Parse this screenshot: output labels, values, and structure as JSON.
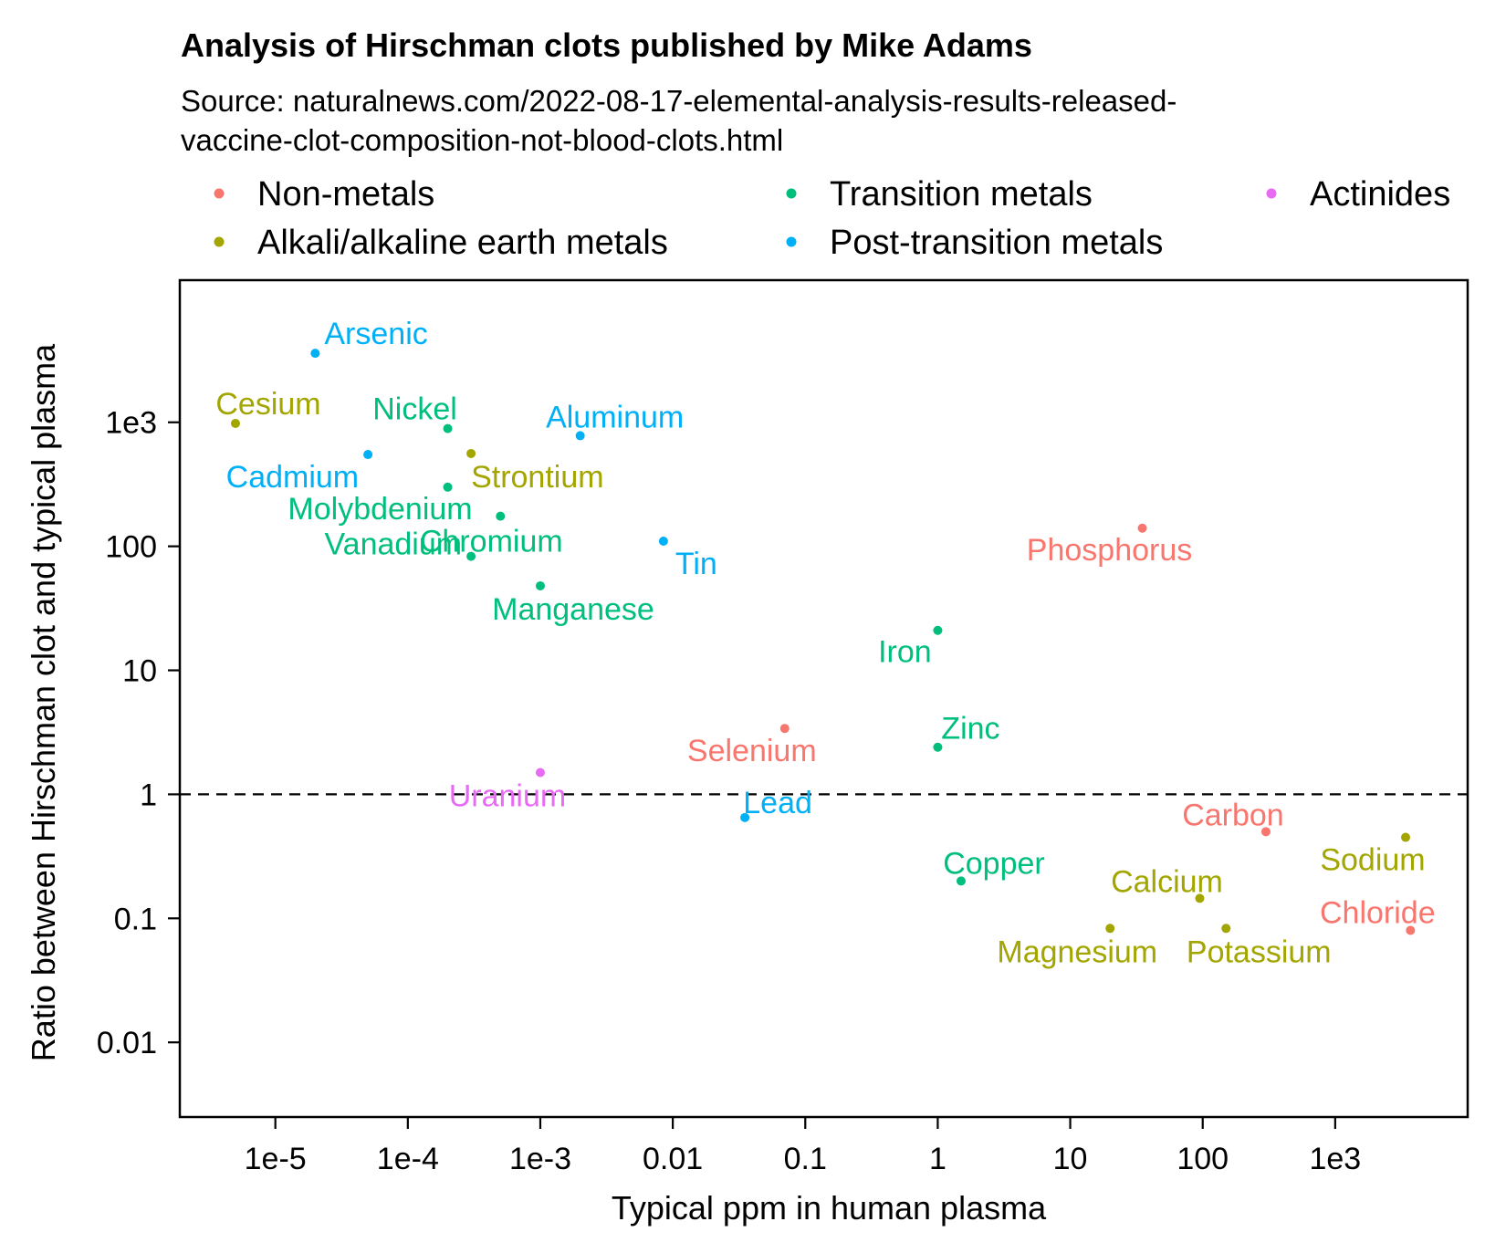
{
  "chart_data": {
    "type": "scatter",
    "title": "Analysis of Hirschman clots published by Mike Adams",
    "subtitle_lines": [
      "Source: naturalnews.com/2022-08-17-elemental-analysis-results-released-",
      "vaccine-clot-composition-not-blood-clots.html"
    ],
    "xlabel": "Typical ppm in human plasma",
    "ylabel": "Ratio between Hirschman clot and typical plasma",
    "x_scale": "log",
    "y_scale": "log",
    "xlim": [
      1.9e-06,
      10000
    ],
    "ylim": [
      0.0025,
      14000
    ],
    "x_ticks": [
      1e-05,
      0.0001,
      0.001,
      0.01,
      0.1,
      1,
      10,
      100,
      1000
    ],
    "x_tick_labels": [
      "1e-5",
      "1e-4",
      "1e-3",
      "0.01",
      "0.1",
      "1",
      "10",
      "100",
      "1e3"
    ],
    "y_ticks": [
      0.01,
      0.1,
      1,
      10,
      100,
      1000
    ],
    "y_tick_labels": [
      "0.01",
      "0.1",
      "1",
      "10",
      "100",
      "1e3"
    ],
    "reference_line": {
      "y": 1,
      "style": "dashed"
    },
    "grid": false,
    "legend_position": "top",
    "groups": [
      {
        "name": "Non-metals",
        "color": "#F8766D"
      },
      {
        "name": "Alkali/alkaline earth metals",
        "color": "#A3A500"
      },
      {
        "name": "Transition metals",
        "color": "#00BF7D"
      },
      {
        "name": "Post-transition metals",
        "color": "#00B0F6"
      },
      {
        "name": "Actinides",
        "color": "#E76BF3"
      }
    ],
    "points": [
      {
        "label": "Arsenic",
        "group": "Post-transition metals",
        "x": 2e-05,
        "y": 3600
      },
      {
        "label": "Cesium",
        "group": "Alkali/alkaline earth metals",
        "x": 5e-06,
        "y": 980
      },
      {
        "label": "Nickel",
        "group": "Transition metals",
        "x": 0.0002,
        "y": 890
      },
      {
        "label": "Aluminum",
        "group": "Post-transition metals",
        "x": 0.002,
        "y": 780
      },
      {
        "label": "Cadmium",
        "group": "Post-transition metals",
        "x": 5e-05,
        "y": 550
      },
      {
        "label": "Strontium",
        "group": "Alkali/alkaline earth metals",
        "x": 0.0003,
        "y": 560
      },
      {
        "label": "Molybdenium",
        "group": "Transition metals",
        "x": 0.0002,
        "y": 300
      },
      {
        "label": "Chromium",
        "group": "Transition metals",
        "x": 0.0005,
        "y": 175
      },
      {
        "label": "Vanadium",
        "group": "Transition metals",
        "x": 0.0003,
        "y": 83
      },
      {
        "label": "Tin",
        "group": "Post-transition metals",
        "x": 0.0085,
        "y": 110
      },
      {
        "label": "Manganese",
        "group": "Transition metals",
        "x": 0.001,
        "y": 48
      },
      {
        "label": "Phosphorus",
        "group": "Non-metals",
        "x": 35,
        "y": 140
      },
      {
        "label": "Iron",
        "group": "Transition metals",
        "x": 1,
        "y": 21
      },
      {
        "label": "Selenium",
        "group": "Non-metals",
        "x": 0.07,
        "y": 3.4
      },
      {
        "label": "Zinc",
        "group": "Transition metals",
        "x": 1,
        "y": 2.4
      },
      {
        "label": "Uranium",
        "group": "Actinides",
        "x": 0.001,
        "y": 1.5
      },
      {
        "label": "Lead",
        "group": "Post-transition metals",
        "x": 0.035,
        "y": 0.65
      },
      {
        "label": "Carbon",
        "group": "Non-metals",
        "x": 300,
        "y": 0.5
      },
      {
        "label": "Sodium",
        "group": "Alkali/alkaline earth metals",
        "x": 3400,
        "y": 0.45
      },
      {
        "label": "Copper",
        "group": "Transition metals",
        "x": 1.5,
        "y": 0.2
      },
      {
        "label": "Calcium",
        "group": "Alkali/alkaline earth metals",
        "x": 95,
        "y": 0.145
      },
      {
        "label": "Chloride",
        "group": "Non-metals",
        "x": 3700,
        "y": 0.08
      },
      {
        "label": "Magnesium",
        "group": "Alkali/alkaline earth metals",
        "x": 20,
        "y": 0.083
      },
      {
        "label": "Potassium",
        "group": "Alkali/alkaline earth metals",
        "x": 150,
        "y": 0.083
      }
    ]
  }
}
